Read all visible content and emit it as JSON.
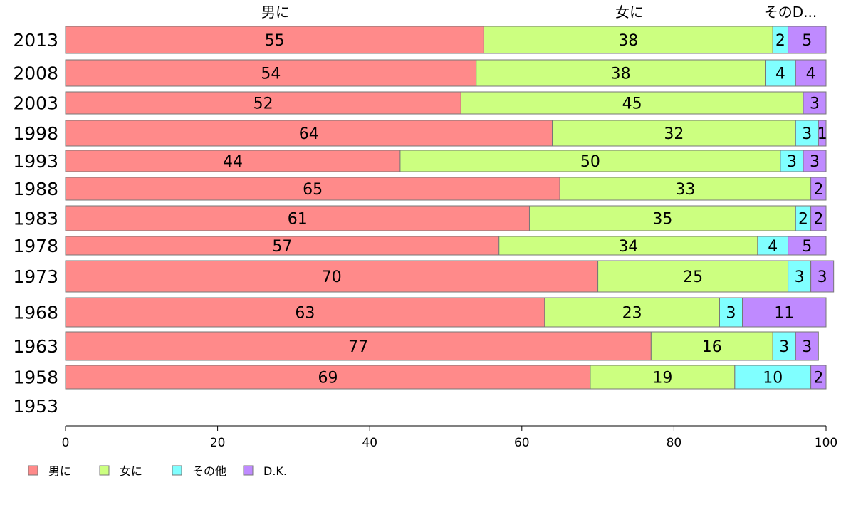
{
  "chart_data": {
    "type": "bar",
    "orientation": "horizontal",
    "stacked": true,
    "categories": [
      "2013",
      "2008",
      "2003",
      "1998",
      "1993",
      "1988",
      "1983",
      "1978",
      "1973",
      "1968",
      "1963",
      "1958",
      "1953"
    ],
    "series": [
      {
        "name": "男に",
        "color": "#ff8a8a",
        "values": [
          55,
          54,
          52,
          64,
          44,
          65,
          61,
          57,
          70,
          63,
          77,
          69,
          null
        ]
      },
      {
        "name": "女に",
        "color": "#ccff80",
        "values": [
          38,
          38,
          45,
          32,
          50,
          33,
          35,
          34,
          25,
          23,
          16,
          19,
          null
        ]
      },
      {
        "name": "その他",
        "color": "#80ffff",
        "values": [
          2,
          4,
          0,
          3,
          3,
          0,
          2,
          4,
          3,
          3,
          3,
          10,
          null
        ]
      },
      {
        "name": "D.K.",
        "color": "#bf8aff",
        "values": [
          5,
          4,
          3,
          1,
          3,
          2,
          2,
          5,
          3,
          11,
          3,
          2,
          null
        ]
      }
    ],
    "top_labels": [
      "男に",
      "女に",
      "そのD..."
    ],
    "xlim": [
      0,
      100
    ],
    "xticks": [
      "0",
      "20",
      "40",
      "60",
      "80",
      "100"
    ],
    "grid": false,
    "legend_position": "bottom-left"
  }
}
